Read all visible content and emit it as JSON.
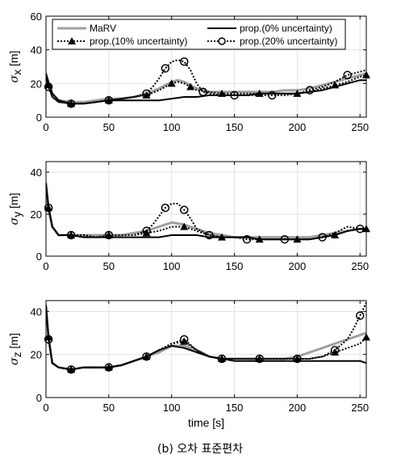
{
  "chart_data": [
    {
      "type": "line",
      "ylabel_symbol": "σ",
      "ylabel_sub": "x",
      "ylabel_unit": "[m]",
      "xlabel": "",
      "xlim": [
        0,
        255
      ],
      "ylim": [
        0,
        60
      ],
      "xticks": [
        0,
        50,
        100,
        150,
        200,
        250
      ],
      "yticks": [
        0,
        20,
        40,
        60
      ],
      "grid": true,
      "legend": {
        "placement": "top",
        "entries": [
          "MaRV",
          "prop.(0% uncertainty)",
          "prop.(10% uncertainty)",
          "prop.(20% uncertainty)"
        ]
      },
      "series": [
        {
          "name": "MaRV",
          "style": "gray",
          "x": [
            0,
            2,
            5,
            10,
            20,
            30,
            40,
            50,
            60,
            70,
            80,
            90,
            95,
            100,
            105,
            110,
            115,
            120,
            130,
            140,
            150,
            160,
            170,
            180,
            190,
            200,
            210,
            220,
            230,
            240,
            250,
            255
          ],
          "y": [
            24,
            20,
            14,
            10,
            9,
            9,
            10,
            11,
            11,
            12,
            14,
            17,
            19,
            21,
            22,
            21,
            19,
            17,
            15,
            15,
            15,
            15,
            15,
            15,
            16,
            16,
            17,
            19,
            21,
            23,
            25,
            26
          ]
        },
        {
          "name": "prop.(0% uncertainty)",
          "style": "black-solid",
          "x": [
            0,
            2,
            5,
            10,
            20,
            30,
            40,
            50,
            60,
            70,
            80,
            90,
            100,
            110,
            120,
            130,
            140,
            150,
            160,
            170,
            180,
            190,
            200,
            210,
            220,
            230,
            240,
            250,
            255
          ],
          "y": [
            26,
            21,
            14,
            10,
            8,
            8,
            9,
            10,
            10,
            10,
            10,
            10,
            11,
            12,
            12,
            13,
            13,
            13,
            13,
            14,
            14,
            14,
            14,
            15,
            16,
            18,
            20,
            22,
            22
          ]
        },
        {
          "name": "prop.(10% uncertainty)",
          "style": "black-dotted-triangle",
          "x": [
            0,
            2,
            5,
            10,
            20,
            30,
            40,
            50,
            60,
            70,
            80,
            90,
            95,
            100,
            105,
            110,
            115,
            120,
            130,
            140,
            150,
            160,
            170,
            180,
            190,
            200,
            210,
            220,
            230,
            240,
            250,
            255
          ],
          "y": [
            24,
            19,
            12,
            9,
            8,
            8,
            9,
            10,
            11,
            12,
            13,
            16,
            18,
            20,
            21,
            20,
            18,
            16,
            15,
            14,
            14,
            14,
            14,
            14,
            14,
            14,
            15,
            17,
            19,
            21,
            24,
            25
          ]
        },
        {
          "name": "prop.(20% uncertainty)",
          "style": "black-dotted-circle",
          "x": [
            0,
            2,
            5,
            10,
            20,
            30,
            40,
            50,
            60,
            70,
            80,
            85,
            90,
            95,
            100,
            105,
            110,
            115,
            120,
            125,
            130,
            140,
            150,
            160,
            170,
            180,
            190,
            200,
            210,
            220,
            230,
            240,
            250,
            255
          ],
          "y": [
            25,
            18,
            12,
            9,
            8,
            8,
            9,
            10,
            11,
            12,
            14,
            18,
            23,
            29,
            33,
            34,
            33,
            28,
            20,
            15,
            14,
            13,
            13,
            13,
            13,
            13,
            13,
            14,
            16,
            18,
            21,
            25,
            27,
            28
          ]
        }
      ]
    },
    {
      "type": "line",
      "ylabel_symbol": "σ",
      "ylabel_sub": "y",
      "ylabel_unit": "[m]",
      "xlabel": "",
      "xlim": [
        0,
        255
      ],
      "ylim": [
        0,
        45
      ],
      "xticks": [
        0,
        50,
        100,
        150,
        200,
        250
      ],
      "yticks": [
        0,
        20,
        40
      ],
      "grid": true,
      "series": [
        {
          "name": "MaRV",
          "style": "gray",
          "x": [
            0,
            2,
            5,
            10,
            20,
            30,
            40,
            50,
            60,
            70,
            80,
            90,
            100,
            110,
            120,
            130,
            140,
            150,
            160,
            170,
            180,
            190,
            200,
            210,
            220,
            230,
            240,
            250,
            255
          ],
          "y": [
            33,
            22,
            14,
            10,
            10,
            10,
            10,
            10,
            10,
            11,
            12,
            14,
            16,
            15,
            13,
            11,
            10,
            9,
            9,
            9,
            9,
            9,
            9,
            9,
            10,
            11,
            12,
            13,
            13
          ]
        },
        {
          "name": "prop.(0% uncertainty)",
          "style": "black-solid",
          "x": [
            0,
            2,
            5,
            10,
            20,
            30,
            40,
            50,
            60,
            70,
            80,
            90,
            100,
            110,
            120,
            130,
            140,
            150,
            160,
            170,
            180,
            190,
            200,
            210,
            220,
            230,
            240,
            250,
            255
          ],
          "y": [
            35,
            24,
            14,
            10,
            10,
            9,
            9,
            9,
            9,
            9,
            9,
            9,
            10,
            10,
            10,
            9,
            9,
            9,
            9,
            8,
            8,
            8,
            8,
            8,
            9,
            10,
            12,
            13,
            13
          ]
        },
        {
          "name": "prop.(10% uncertainty)",
          "style": "black-dotted-triangle",
          "x": [
            0,
            2,
            5,
            10,
            20,
            30,
            40,
            50,
            60,
            70,
            80,
            90,
            100,
            110,
            120,
            130,
            140,
            150,
            160,
            170,
            180,
            190,
            200,
            210,
            220,
            230,
            240,
            250,
            255
          ],
          "y": [
            34,
            23,
            14,
            10,
            10,
            10,
            9,
            10,
            10,
            10,
            11,
            12,
            14,
            14,
            12,
            10,
            9,
            9,
            9,
            8,
            8,
            8,
            8,
            8,
            9,
            10,
            12,
            13,
            13
          ]
        },
        {
          "name": "prop.(20% uncertainty)",
          "style": "black-dotted-circle",
          "x": [
            0,
            2,
            5,
            10,
            20,
            30,
            40,
            50,
            60,
            70,
            80,
            85,
            90,
            95,
            100,
            105,
            110,
            115,
            120,
            130,
            140,
            150,
            160,
            170,
            180,
            190,
            200,
            210,
            220,
            230,
            240,
            250,
            255
          ],
          "y": [
            34,
            23,
            14,
            10,
            10,
            10,
            9,
            10,
            10,
            10,
            12,
            15,
            19,
            23,
            25,
            25,
            22,
            18,
            13,
            10,
            9,
            9,
            8,
            8,
            8,
            8,
            8,
            8,
            9,
            11,
            14,
            13,
            12
          ]
        }
      ]
    },
    {
      "type": "line",
      "ylabel_symbol": "σ",
      "ylabel_sub": "z",
      "ylabel_unit": "[m]",
      "xlabel": "time [s]",
      "xlim": [
        0,
        255
      ],
      "ylim": [
        0,
        45
      ],
      "xticks": [
        0,
        50,
        100,
        150,
        200,
        250
      ],
      "xticklabels": [
        "0",
        "50",
        "100",
        "150",
        "200",
        "250"
      ],
      "yticks": [
        0,
        20,
        40
      ],
      "grid": true,
      "series": [
        {
          "name": "MaRV",
          "style": "gray",
          "x": [
            0,
            2,
            5,
            10,
            20,
            30,
            40,
            50,
            60,
            70,
            80,
            90,
            100,
            110,
            120,
            130,
            140,
            150,
            160,
            170,
            180,
            190,
            200,
            210,
            220,
            230,
            240,
            250,
            255
          ],
          "y": [
            42,
            28,
            16,
            14,
            13,
            14,
            14,
            14,
            15,
            17,
            19,
            21,
            24,
            24,
            22,
            19,
            18,
            18,
            18,
            18,
            18,
            18,
            19,
            21,
            23,
            25,
            27,
            29,
            30
          ]
        },
        {
          "name": "prop.(0% uncertainty)",
          "style": "black-solid",
          "x": [
            0,
            2,
            5,
            10,
            20,
            30,
            40,
            50,
            60,
            70,
            80,
            90,
            100,
            110,
            120,
            130,
            140,
            150,
            160,
            170,
            180,
            190,
            200,
            210,
            220,
            230,
            240,
            250,
            255
          ],
          "y": [
            43,
            28,
            16,
            14,
            13,
            14,
            14,
            14,
            15,
            17,
            19,
            22,
            24,
            23,
            21,
            19,
            18,
            17,
            17,
            17,
            17,
            17,
            17,
            17,
            17,
            17,
            17,
            17,
            16
          ]
        },
        {
          "name": "prop.(10% uncertainty)",
          "style": "black-dotted-triangle",
          "x": [
            0,
            2,
            5,
            10,
            20,
            30,
            40,
            50,
            60,
            70,
            80,
            90,
            100,
            110,
            120,
            130,
            140,
            150,
            160,
            170,
            180,
            190,
            200,
            210,
            220,
            230,
            240,
            250,
            255
          ],
          "y": [
            42,
            28,
            16,
            14,
            13,
            14,
            14,
            14,
            15,
            17,
            19,
            22,
            25,
            26,
            22,
            19,
            18,
            18,
            18,
            18,
            18,
            18,
            18,
            18,
            19,
            21,
            23,
            25,
            28
          ]
        },
        {
          "name": "prop.(20% uncertainty)",
          "style": "black-dotted-circle",
          "x": [
            0,
            2,
            5,
            10,
            20,
            30,
            40,
            50,
            60,
            70,
            80,
            90,
            100,
            110,
            120,
            130,
            140,
            150,
            160,
            170,
            180,
            190,
            200,
            210,
            220,
            230,
            240,
            245,
            250,
            255
          ],
          "y": [
            42,
            27,
            16,
            14,
            13,
            14,
            14,
            14,
            15,
            17,
            19,
            22,
            25,
            27,
            22,
            19,
            18,
            18,
            18,
            18,
            18,
            18,
            18,
            18,
            19,
            22,
            27,
            32,
            38,
            44
          ]
        }
      ]
    }
  ],
  "caption": "(b) 오차 표준편차"
}
